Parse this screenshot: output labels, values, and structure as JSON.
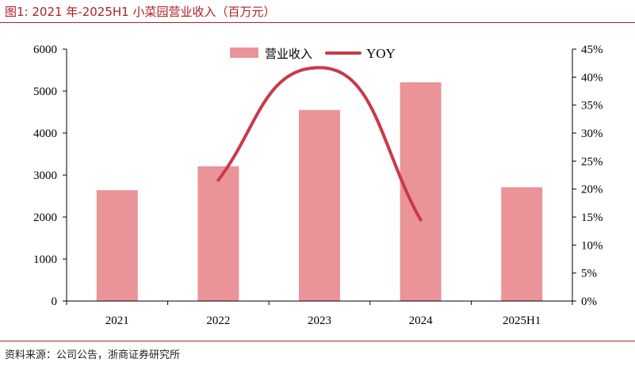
{
  "figure": {
    "title": "图1:   2021 年-2025H1 小菜园营业收入（百万元）",
    "source": "资料来源：公司公告，浙商证券研究所"
  },
  "colors": {
    "accent": "#b02024",
    "bar": "#ea9499",
    "line": "#c9394a"
  },
  "chart_data": {
    "type": "bar",
    "categories": [
      "2021",
      "2022",
      "2023",
      "2024",
      "2025H1"
    ],
    "series": [
      {
        "name": "营业收入",
        "type": "bar",
        "axis": "left",
        "values": [
          2640,
          3210,
          4550,
          5210,
          2710
        ]
      },
      {
        "name": "YOY",
        "type": "line",
        "axis": "right",
        "smooth": true,
        "x": [
          "2022",
          "2023",
          "2024"
        ],
        "values": [
          21.6,
          41.7,
          14.5
        ]
      }
    ],
    "y_left": {
      "lim": [
        0,
        6000
      ],
      "ticks": [
        0,
        1000,
        2000,
        3000,
        4000,
        5000,
        6000
      ]
    },
    "y_right": {
      "lim": [
        0,
        45
      ],
      "ticks": [
        0,
        5,
        10,
        15,
        20,
        25,
        30,
        35,
        40,
        45
      ],
      "format": "%"
    },
    "legend": {
      "position": "top-center",
      "entries": [
        "营业收入",
        "YOY"
      ]
    },
    "grid": false
  }
}
